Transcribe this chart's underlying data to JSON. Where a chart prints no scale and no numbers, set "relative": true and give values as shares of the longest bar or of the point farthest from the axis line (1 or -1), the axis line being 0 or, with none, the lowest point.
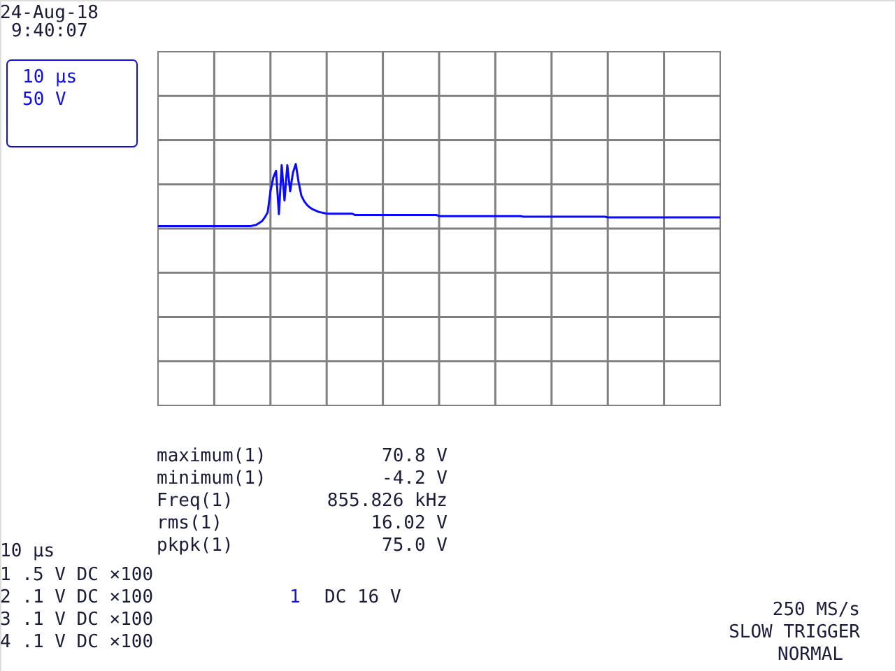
{
  "chart_data": {
    "type": "line",
    "relative": true,
    "categories": [
      null,
      null,
      null,
      null,
      null,
      null,
      null,
      null,
      null,
      null,
      null,
      null,
      null,
      null,
      null,
      null,
      null,
      null,
      null,
      null,
      null,
      null,
      null,
      null,
      null,
      null,
      null,
      null,
      null,
      null,
      null,
      null,
      null,
      null,
      null,
      null,
      null,
      null,
      null,
      null,
      null,
      null,
      null,
      null,
      null,
      null,
      null,
      null,
      null,
      null,
      null,
      null,
      null,
      null,
      null,
      null,
      null,
      null,
      null,
      null,
      null,
      null,
      null,
      null,
      null,
      null,
      null,
      null,
      null,
      null,
      null,
      null,
      null,
      null,
      null,
      null,
      null,
      null,
      null,
      null,
      null,
      null,
      null,
      null,
      null,
      null,
      null,
      null,
      null,
      null,
      null,
      null,
      null,
      null,
      null,
      null,
      null,
      null,
      null,
      null,
      null,
      null,
      null,
      null,
      null,
      null,
      null,
      null,
      null,
      null,
      null,
      null,
      null,
      null,
      null,
      null,
      null,
      null,
      null,
      null,
      null,
      null,
      null,
      null,
      null,
      null,
      null,
      null,
      null,
      null,
      null,
      null,
      null,
      null,
      null,
      null,
      null,
      null,
      null,
      null,
      null,
      null,
      null,
      null,
      null,
      null,
      null,
      null,
      null,
      null,
      null,
      null,
      null,
      null,
      null,
      null,
      null,
      null,
      null,
      null,
      null,
      null,
      null,
      null,
      null,
      null,
      null,
      null,
      null,
      null,
      null,
      null,
      null,
      null,
      null,
      null,
      null,
      null,
      null,
      null,
      null,
      null,
      null,
      null,
      null,
      null,
      null,
      null,
      null,
      null,
      null,
      null,
      null,
      null,
      null,
      null,
      null,
      null,
      null,
      null,
      null
    ],
    "series": [
      {
        "color": "#0a0aff",
        "values": [
          0,
          0,
          0,
          0,
          0,
          0,
          0,
          0,
          0,
          0,
          0,
          0,
          0,
          0,
          0,
          0,
          0,
          0,
          0,
          0,
          0,
          0,
          0,
          0,
          0,
          0,
          0,
          0,
          0,
          0,
          0,
          0,
          0,
          0,
          0.01,
          0.02,
          0.05,
          0.08,
          0.14,
          0.22,
          0.56,
          0.78,
          0.89,
          0.19,
          0.98,
          0.41,
          0.98,
          0.56,
          0.86,
          1.0,
          0.71,
          0.49,
          0.4,
          0.34,
          0.3,
          0.27,
          0.25,
          0.23,
          0.22,
          0.21,
          0.2,
          0.2,
          0.2,
          0.2,
          0.2,
          0.2,
          0.2,
          0.2,
          0.2,
          0.2,
          0.18,
          0.18,
          0.18,
          0.18,
          0.18,
          0.18,
          0.18,
          0.18,
          0.18,
          0.18,
          0.18,
          0.18,
          0.18,
          0.18,
          0.18,
          0.18,
          0.18,
          0.18,
          0.18,
          0.18,
          0.18,
          0.18,
          0.18,
          0.18,
          0.18,
          0.18,
          0.18,
          0.18,
          0.18,
          0.18,
          0.16,
          0.16,
          0.16,
          0.16,
          0.16,
          0.16,
          0.16,
          0.16,
          0.16,
          0.16,
          0.16,
          0.16,
          0.16,
          0.16,
          0.16,
          0.16,
          0.16,
          0.16,
          0.16,
          0.16,
          0.16,
          0.16,
          0.16,
          0.16,
          0.16,
          0.16,
          0.16,
          0.16,
          0.16,
          0.16,
          0.15,
          0.15,
          0.15,
          0.15,
          0.15,
          0.15,
          0.15,
          0.15,
          0.15,
          0.15,
          0.15,
          0.15,
          0.15,
          0.15,
          0.15,
          0.15,
          0.15,
          0.15,
          0.15,
          0.15,
          0.15,
          0.15,
          0.15,
          0.15,
          0.15,
          0.15,
          0.15,
          0.15,
          0.15,
          0.15,
          0.14,
          0.14,
          0.14,
          0.14,
          0.14,
          0.14,
          0.14,
          0.14,
          0.14,
          0.14,
          0.14,
          0.14,
          0.14,
          0.14,
          0.14,
          0.14,
          0.14,
          0.14,
          0.14,
          0.14,
          0.14,
          0.14,
          0.14,
          0.14,
          0.14,
          0.14,
          0.14,
          0.14,
          0.14,
          0.14,
          0.14,
          0.14,
          0.14,
          0.14,
          0.14,
          0.14,
          0.14,
          0.14,
          0.14,
          0.14,
          0.14
        ]
      }
    ],
    "grid": true,
    "annotations": [
      "24-Aug-18",
      "9:40:07",
      "10 μs",
      "50 V",
      "maximum(1)",
      "70.8 V",
      "minimum(1)",
      "-4.2 V",
      "Freq(1)",
      "855.826 kHz",
      "rms(1)",
      "16.02 V",
      "pkpk(1)",
      "75.0 V",
      "10 μs",
      "1 .5 V DC ×100",
      "2 .1 V DC ×100",
      "3 .1 V DC ×100",
      "4 .1 V DC ×100",
      "1",
      "DC 16 V",
      "250 MS/s",
      "SLOW TRIGGER",
      "NORMAL"
    ]
  }
}
